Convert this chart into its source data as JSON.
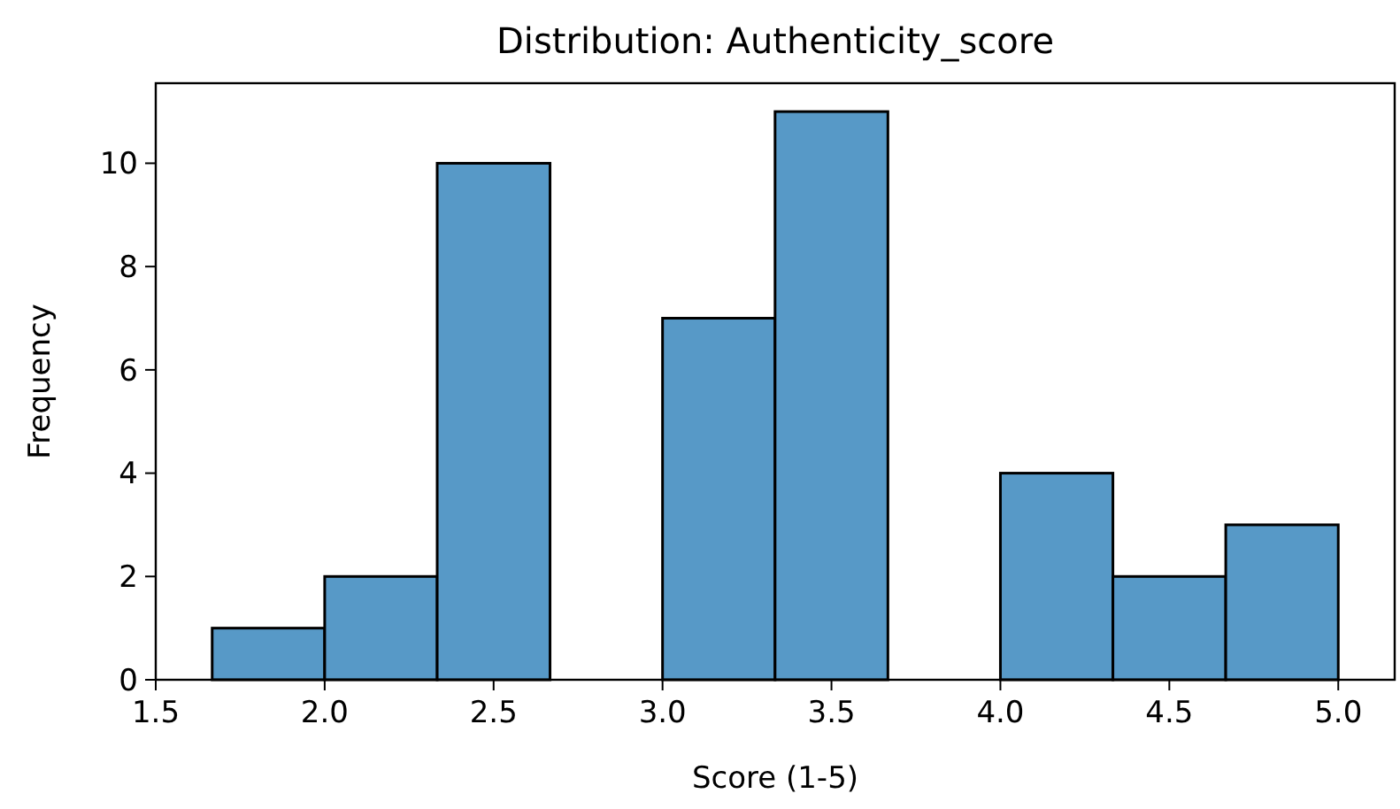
{
  "chart_data": {
    "type": "histogram",
    "title": "Distribution: Authenticity_score",
    "xlabel": "Score (1-5)",
    "ylabel": "Frequency",
    "bins": [
      1.667,
      2.0,
      2.333,
      2.667,
      3.0,
      3.333,
      3.667,
      4.0,
      4.333,
      4.667,
      5.0
    ],
    "values": [
      1,
      2,
      10,
      0,
      7,
      11,
      0,
      4,
      2,
      3
    ],
    "color": "#5799c7",
    "xlim": [
      1.5,
      5.167
    ],
    "xticks": [
      {
        "value": 1.5,
        "label": "1.5"
      },
      {
        "value": 2,
        "label": "2.0"
      },
      {
        "value": 2.5,
        "label": "2.5"
      },
      {
        "value": 3,
        "label": "3.0"
      },
      {
        "value": 3.5,
        "label": "3.5"
      },
      {
        "value": 4,
        "label": "4.0"
      },
      {
        "value": 4.5,
        "label": "4.5"
      },
      {
        "value": 5,
        "label": "5.0"
      }
    ],
    "ylim": [
      0,
      11.55
    ],
    "yticks": [
      0,
      2,
      4,
      6,
      8,
      10
    ],
    "grid": false
  }
}
